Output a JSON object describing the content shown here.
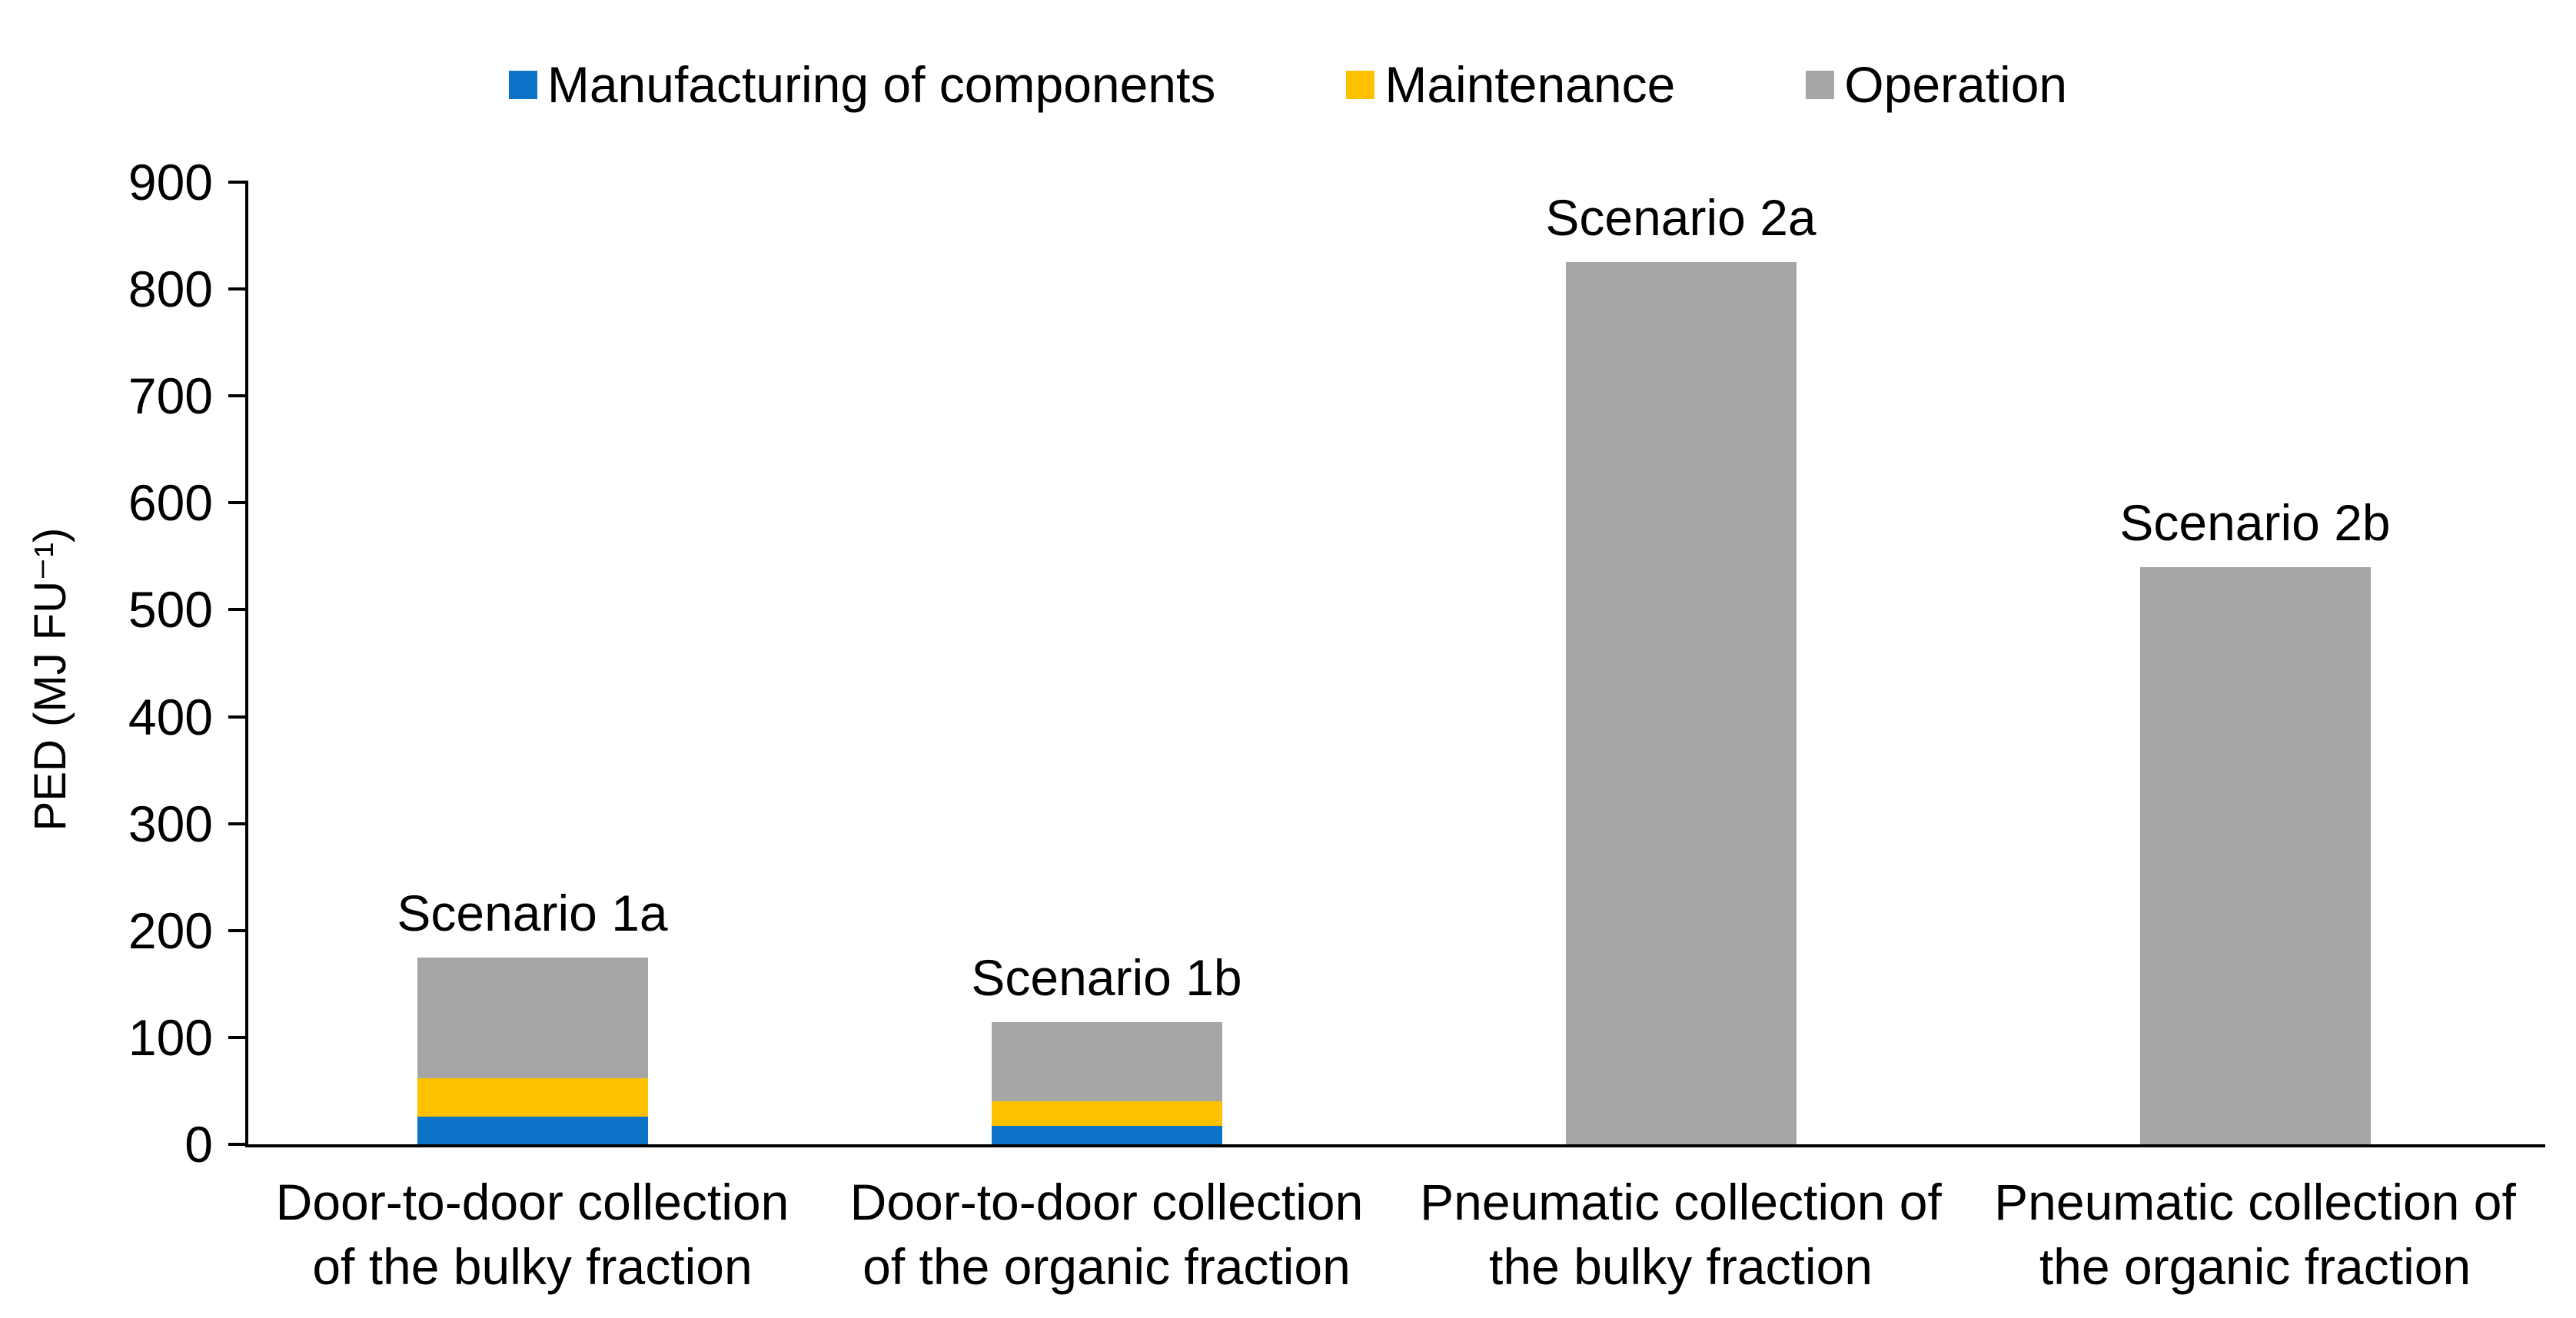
{
  "chart_data": {
    "type": "bar",
    "stacked": true,
    "title": "",
    "xlabel": "",
    "ylabel": "PED (MJ FU⁻¹)",
    "ylim": [
      0,
      900
    ],
    "ytick_step": 100,
    "ytick_labels": [
      "0",
      "100",
      "200",
      "300",
      "400",
      "500",
      "600",
      "700",
      "800",
      "900"
    ],
    "grid": false,
    "legend_position": "top-center",
    "categories": [
      "Door-to-door collection of the bulky fraction",
      "Door-to-door collection of the organic fraction",
      "Pneumatic collection of the bulky fraction",
      "Pneumatic collection of the organic fraction"
    ],
    "bar_labels": [
      "Scenario 1a",
      "Scenario 1b",
      "Scenario 2a",
      "Scenario 2b"
    ],
    "series": [
      {
        "name": "Manufacturing of components",
        "color": "#0B74C8",
        "values": [
          26,
          17,
          0,
          0
        ]
      },
      {
        "name": "Maintenance",
        "color": "#FFC000",
        "values": [
          36,
          23,
          0,
          0
        ]
      },
      {
        "name": "Operation",
        "color": "#A6A6A6",
        "values": [
          113,
          74,
          825,
          540
        ]
      }
    ]
  },
  "colors": {
    "axis": "#000000",
    "text": "#000000",
    "background": "#FFFFFF"
  }
}
